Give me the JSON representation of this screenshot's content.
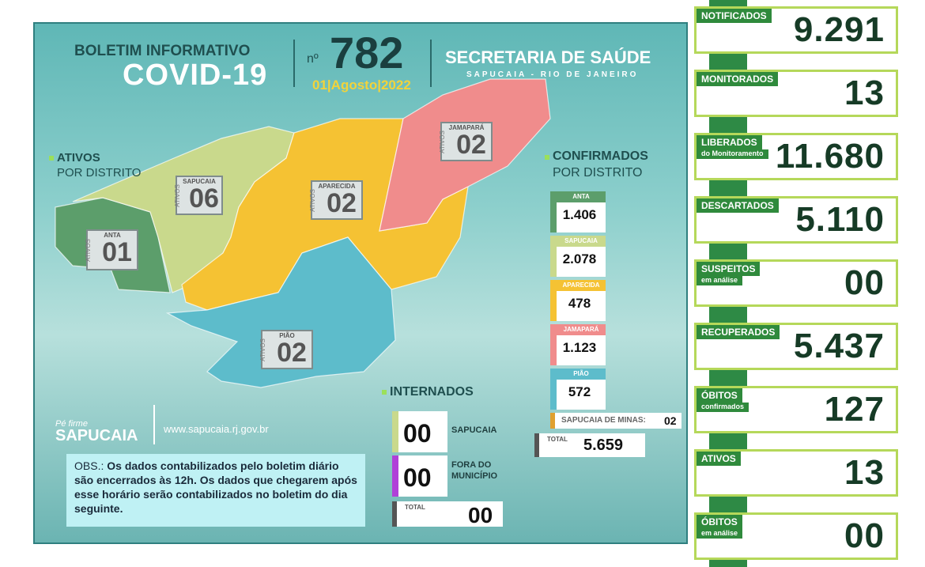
{
  "header": {
    "title_line1": "BOLETIM INFORMATIVO",
    "title_line2": "COVID-19",
    "number_prefix": "nº",
    "number": "782",
    "date": "01|Agosto|2022",
    "org": "SECRETARIA DE SAÚDE",
    "org_sub": "SAPUCAIA - RIO DE JANEIRO"
  },
  "ativos": {
    "title": "ATIVOS",
    "subtitle": "POR DISTRITO",
    "tag": "ATIVOS",
    "districts": [
      {
        "name": "SAPUCAIA",
        "value": "06"
      },
      {
        "name": "APARECIDA",
        "value": "02"
      },
      {
        "name": "JAMAPARÁ",
        "value": "02"
      },
      {
        "name": "ANTA",
        "value": "01"
      },
      {
        "name": "PIÃO",
        "value": "02"
      }
    ]
  },
  "confirmados": {
    "title": "CONFIRMADOS",
    "subtitle": "POR DISTRITO",
    "districts": [
      {
        "name": "ANTA",
        "value": "1.406"
      },
      {
        "name": "SAPUCAIA",
        "value": "2.078"
      },
      {
        "name": "APARECIDA",
        "value": "478"
      },
      {
        "name": "JAMAPARÁ",
        "value": "1.123"
      },
      {
        "name": "PIÃO",
        "value": "572"
      }
    ],
    "other_label": "SAPUCAIA DE MINAS:",
    "other_value": "02",
    "total_label": "TOTAL",
    "total_value": "5.659"
  },
  "internados": {
    "title": "INTERNADOS",
    "rows": [
      {
        "value": "00",
        "label": [
          "SAPUCAIA"
        ]
      },
      {
        "value": "00",
        "label": [
          "FORA DO",
          "MUNICÍPIO"
        ]
      }
    ],
    "total_label": "TOTAL",
    "total_value": "00"
  },
  "logo": {
    "slogan": "Pé firme",
    "name": "SAPUCAIA"
  },
  "website": "www.sapucaia.rj.gov.br",
  "note": {
    "prefix": "OBS.:",
    "text": "Os dados contabilizados pelo boletim diário são encerrados às 12h. Os dados que chegarem após esse horário serão contabilizados no boletim do dia seguinte."
  },
  "cards": [
    {
      "label": "NOTIFICADOS",
      "value": "9.291"
    },
    {
      "label": "MONITORADOS",
      "value": "13"
    },
    {
      "label": "LIBERADOS",
      "sublabel": "do Monitoramento",
      "value": "11.680"
    },
    {
      "label": "DESCARTADOS",
      "value": "5.110"
    },
    {
      "label": "SUSPEITOS",
      "sublabel": "em análise",
      "value": "00"
    },
    {
      "label": "RECUPERADOS",
      "value": "5.437"
    },
    {
      "label": "ÓBITOS",
      "sublabel": "confirmados",
      "value": "127"
    },
    {
      "label": "ATIVOS",
      "value": "13"
    },
    {
      "label": "ÓBITOS",
      "sublabel": "em análise",
      "value": "00"
    }
  ]
}
